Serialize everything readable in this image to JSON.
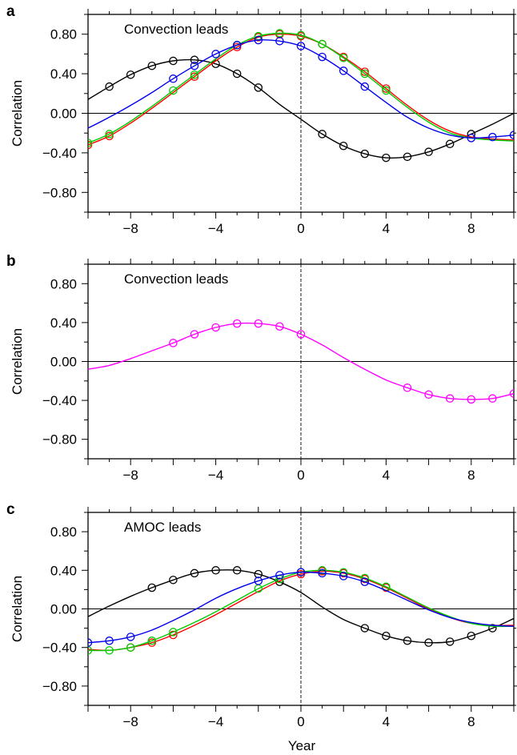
{
  "figure": {
    "xlabel": "Year"
  },
  "chart_data": [
    {
      "panel_label": "a",
      "type": "line",
      "annotation": "Convection leads",
      "ylabel": "Correlation",
      "xlim": [
        -10,
        10
      ],
      "ylim": [
        -1.0,
        1.0
      ],
      "xticks": [
        -8,
        -4,
        0,
        4,
        8
      ],
      "xtick_labels": [
        "−8",
        "−4",
        "0",
        "4",
        "8"
      ],
      "yticks": [
        0.8,
        0.4,
        0.0,
        -0.4,
        -0.8
      ],
      "ytick_labels": [
        "0.80",
        "0.40",
        "0.00",
        "−0.40",
        "−0.80"
      ],
      "series": [
        {
          "color": "#000000",
          "x": [
            -10,
            -9,
            -8,
            -7,
            -6,
            -5,
            -4,
            -3,
            -2,
            -1,
            0,
            1,
            2,
            3,
            4,
            5,
            6,
            7,
            8,
            9,
            10
          ],
          "y": [
            0.14,
            0.27,
            0.39,
            0.48,
            0.53,
            0.54,
            0.5,
            0.4,
            0.26,
            0.09,
            -0.06,
            -0.21,
            -0.33,
            -0.41,
            -0.45,
            -0.44,
            -0.39,
            -0.31,
            -0.21,
            -0.11,
            0.0
          ],
          "markers": [
            -9,
            -8,
            -7,
            -6,
            -5,
            -4,
            -3,
            -2,
            1,
            2,
            3,
            4,
            5,
            6,
            7,
            8
          ]
        },
        {
          "color": "#ff0000",
          "x": [
            -10,
            -9,
            -8,
            -7,
            -6,
            -5,
            -4,
            -3,
            -2,
            -1,
            0,
            1,
            2,
            3,
            4,
            5,
            6,
            7,
            8,
            9,
            10
          ],
          "y": [
            -0.32,
            -0.23,
            -0.1,
            0.05,
            0.21,
            0.37,
            0.53,
            0.67,
            0.77,
            0.8,
            0.78,
            0.7,
            0.57,
            0.42,
            0.25,
            0.08,
            -0.07,
            -0.18,
            -0.24,
            -0.26,
            -0.27
          ],
          "markers": [
            -10,
            -9,
            -5,
            -3,
            -2,
            -1,
            0,
            1,
            2,
            3,
            4
          ]
        },
        {
          "color": "#00cc00",
          "x": [
            -10,
            -9,
            -8,
            -7,
            -6,
            -5,
            -4,
            -3,
            -2,
            -1,
            0,
            1,
            2,
            3,
            4,
            5,
            6,
            7,
            8,
            9,
            10
          ],
          "y": [
            -0.3,
            -0.21,
            -0.08,
            0.07,
            0.23,
            0.39,
            0.55,
            0.69,
            0.78,
            0.81,
            0.79,
            0.7,
            0.56,
            0.4,
            0.23,
            0.06,
            -0.09,
            -0.2,
            -0.25,
            -0.27,
            -0.28
          ],
          "markers": [
            -10,
            -9,
            -6,
            -5,
            -3,
            -2,
            -1,
            0,
            1,
            2,
            3,
            4
          ]
        },
        {
          "color": "#0000ee",
          "x": [
            -10,
            -9,
            -8,
            -7,
            -6,
            -5,
            -4,
            -3,
            -2,
            -1,
            0,
            1,
            2,
            3,
            4,
            5,
            6,
            7,
            8,
            9,
            10
          ],
          "y": [
            -0.15,
            -0.04,
            0.08,
            0.21,
            0.35,
            0.48,
            0.6,
            0.69,
            0.74,
            0.73,
            0.68,
            0.57,
            0.43,
            0.27,
            0.11,
            -0.04,
            -0.15,
            -0.22,
            -0.25,
            -0.24,
            -0.22
          ],
          "markers": [
            -6,
            -5,
            -4,
            -3,
            -2,
            -1,
            0,
            1,
            2,
            3,
            8,
            9,
            10
          ]
        }
      ]
    },
    {
      "panel_label": "b",
      "type": "line",
      "annotation": "Convection leads",
      "ylabel": "Correlation",
      "xlim": [
        -10,
        10
      ],
      "ylim": [
        -1.0,
        1.0
      ],
      "xticks": [
        -8,
        -4,
        0,
        4,
        8
      ],
      "xtick_labels": [
        "−8",
        "−4",
        "0",
        "4",
        "8"
      ],
      "yticks": [
        0.8,
        0.4,
        0.0,
        -0.4,
        -0.8
      ],
      "ytick_labels": [
        "0.80",
        "0.40",
        "0.00",
        "−0.40",
        "−0.80"
      ],
      "series": [
        {
          "color": "#ff00ff",
          "x": [
            -10,
            -9,
            -8,
            -7,
            -6,
            -5,
            -4,
            -3,
            -2,
            -1,
            0,
            1,
            2,
            3,
            4,
            5,
            6,
            7,
            8,
            9,
            10
          ],
          "y": [
            -0.08,
            -0.04,
            0.03,
            0.11,
            0.19,
            0.28,
            0.35,
            0.39,
            0.39,
            0.36,
            0.28,
            0.17,
            0.04,
            -0.08,
            -0.19,
            -0.27,
            -0.34,
            -0.38,
            -0.39,
            -0.38,
            -0.33
          ],
          "markers": [
            -6,
            -5,
            -4,
            -3,
            -2,
            -1,
            0,
            5,
            6,
            7,
            8,
            9,
            10
          ]
        }
      ]
    },
    {
      "panel_label": "c",
      "type": "line",
      "annotation": "AMOC leads",
      "ylabel": "Correlation",
      "xlabel": "Year",
      "xlim": [
        -10,
        10
      ],
      "ylim": [
        -1.0,
        1.0
      ],
      "xticks": [
        -8,
        -4,
        0,
        4,
        8
      ],
      "xtick_labels": [
        "−8",
        "−4",
        "0",
        "4",
        "8"
      ],
      "yticks": [
        0.8,
        0.4,
        0.0,
        -0.4,
        -0.8
      ],
      "ytick_labels": [
        "0.80",
        "0.40",
        "0.00",
        "−0.40",
        "−0.80"
      ],
      "series": [
        {
          "color": "#000000",
          "x": [
            -10,
            -9,
            -8,
            -7,
            -6,
            -5,
            -4,
            -3,
            -2,
            -1,
            0,
            1,
            2,
            3,
            4,
            5,
            6,
            7,
            8,
            9,
            10
          ],
          "y": [
            -0.08,
            0.03,
            0.13,
            0.22,
            0.3,
            0.37,
            0.4,
            0.4,
            0.36,
            0.28,
            0.17,
            0.02,
            -0.11,
            -0.2,
            -0.28,
            -0.33,
            -0.35,
            -0.34,
            -0.28,
            -0.2,
            -0.1
          ],
          "markers": [
            -7,
            -6,
            -5,
            -4,
            -3,
            -2,
            -1,
            3,
            4,
            5,
            6,
            7,
            8,
            9
          ]
        },
        {
          "color": "#ff0000",
          "x": [
            -10,
            -9,
            -8,
            -7,
            -6,
            -5,
            -4,
            -3,
            -2,
            -1,
            0,
            1,
            2,
            3,
            4,
            5,
            6,
            7,
            8,
            9,
            10
          ],
          "y": [
            -0.42,
            -0.43,
            -0.4,
            -0.35,
            -0.27,
            -0.17,
            -0.06,
            0.06,
            0.18,
            0.29,
            0.36,
            0.39,
            0.37,
            0.31,
            0.22,
            0.11,
            0.0,
            -0.09,
            -0.15,
            -0.17,
            -0.17
          ],
          "markers": [
            -8,
            -7,
            -6,
            0,
            1,
            2,
            3,
            4
          ]
        },
        {
          "color": "#00cc00",
          "x": [
            -10,
            -9,
            -8,
            -7,
            -6,
            -5,
            -4,
            -3,
            -2,
            -1,
            0,
            1,
            2,
            3,
            4,
            5,
            6,
            7,
            8,
            9,
            10
          ],
          "y": [
            -0.43,
            -0.43,
            -0.4,
            -0.33,
            -0.24,
            -0.14,
            -0.03,
            0.09,
            0.21,
            0.31,
            0.38,
            0.4,
            0.38,
            0.32,
            0.23,
            0.12,
            0.01,
            -0.08,
            -0.15,
            -0.18,
            -0.18
          ],
          "markers": [
            -10,
            -9,
            -8,
            -7,
            -6,
            -2,
            -1,
            0,
            1,
            2,
            3,
            4
          ]
        },
        {
          "color": "#0000ee",
          "x": [
            -10,
            -9,
            -8,
            -7,
            -6,
            -5,
            -4,
            -3,
            -2,
            -1,
            0,
            1,
            2,
            3,
            4,
            5,
            6,
            7,
            8,
            9,
            10
          ],
          "y": [
            -0.35,
            -0.33,
            -0.29,
            -0.22,
            -0.12,
            -0.01,
            0.11,
            0.21,
            0.29,
            0.35,
            0.38,
            0.37,
            0.34,
            0.28,
            0.19,
            0.09,
            -0.01,
            -0.09,
            -0.14,
            -0.17,
            -0.18
          ],
          "markers": [
            -10,
            -9,
            -8,
            -2,
            -1,
            0,
            1,
            2,
            3
          ]
        }
      ]
    }
  ]
}
